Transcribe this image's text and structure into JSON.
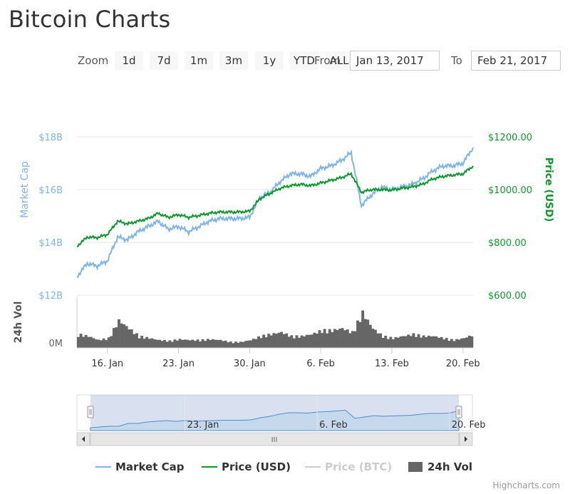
{
  "page": {
    "title": "Bitcoin Charts"
  },
  "range_selector": {
    "zoom_label": "Zoom",
    "buttons": [
      "1d",
      "7d",
      "1m",
      "3m",
      "1y",
      "YTD",
      "ALL"
    ],
    "from_label": "From",
    "to_label": "To",
    "from_value": "Jan 13, 2017",
    "to_value": "Feb 21, 2017"
  },
  "chart_data": {
    "type": "line",
    "axes": {
      "left": {
        "title": "Market Cap",
        "ticks": [
          "$12B",
          "$14B",
          "$16B",
          "$18B"
        ],
        "range": [
          12,
          18
        ],
        "unit": "B USD",
        "color": "#7cb5ec"
      },
      "right": {
        "title": "Price (USD)",
        "ticks": [
          "$600.00",
          "$800.00",
          "$1000.00",
          "$1200.00"
        ],
        "range": [
          600,
          1200
        ],
        "color": "#0a9a2a"
      },
      "volume": {
        "title": "24h Vol",
        "ticks": [
          "0M"
        ]
      },
      "x": {
        "ticks": [
          "16. Jan",
          "23. Jan",
          "30. Jan",
          "6. Feb",
          "13. Feb",
          "20. Feb"
        ],
        "range": [
          "2017-01-13",
          "2017-02-21"
        ]
      }
    },
    "grid": true,
    "legend_position": "bottom",
    "series": [
      {
        "name": "Market Cap",
        "color": "#7cb5ec",
        "x": [
          "2017-01-13",
          "2017-01-14",
          "2017-01-15",
          "2017-01-16",
          "2017-01-17",
          "2017-01-18",
          "2017-01-19",
          "2017-01-20",
          "2017-01-21",
          "2017-01-22",
          "2017-01-23",
          "2017-01-24",
          "2017-01-25",
          "2017-01-26",
          "2017-01-27",
          "2017-01-28",
          "2017-01-29",
          "2017-01-30",
          "2017-01-31",
          "2017-02-01",
          "2017-02-02",
          "2017-02-03",
          "2017-02-04",
          "2017-02-05",
          "2017-02-06",
          "2017-02-07",
          "2017-02-08",
          "2017-02-09",
          "2017-02-10",
          "2017-02-11",
          "2017-02-12",
          "2017-02-13",
          "2017-02-14",
          "2017-02-15",
          "2017-02-16",
          "2017-02-17",
          "2017-02-18",
          "2017-02-19",
          "2017-02-20",
          "2017-02-21"
        ],
        "values": [
          12.7,
          13.2,
          13.1,
          13.3,
          14.2,
          14.1,
          14.4,
          14.6,
          14.8,
          14.5,
          14.6,
          14.4,
          14.6,
          14.8,
          14.9,
          14.9,
          14.9,
          14.95,
          15.7,
          15.9,
          16.3,
          16.6,
          16.6,
          16.5,
          16.8,
          16.9,
          17.1,
          17.4,
          15.4,
          15.8,
          16.1,
          16.0,
          16.1,
          16.2,
          16.4,
          16.7,
          16.9,
          16.9,
          17.0,
          17.6
        ],
        "unit": "B USD"
      },
      {
        "name": "Price (USD)",
        "color": "#0a9a2a",
        "x": [
          "2017-01-13",
          "2017-01-14",
          "2017-01-15",
          "2017-01-16",
          "2017-01-17",
          "2017-01-18",
          "2017-01-19",
          "2017-01-20",
          "2017-01-21",
          "2017-01-22",
          "2017-01-23",
          "2017-01-24",
          "2017-01-25",
          "2017-01-26",
          "2017-01-27",
          "2017-01-28",
          "2017-01-29",
          "2017-01-30",
          "2017-01-31",
          "2017-02-01",
          "2017-02-02",
          "2017-02-03",
          "2017-02-04",
          "2017-02-05",
          "2017-02-06",
          "2017-02-07",
          "2017-02-08",
          "2017-02-09",
          "2017-02-10",
          "2017-02-11",
          "2017-02-12",
          "2017-02-13",
          "2017-02-14",
          "2017-02-15",
          "2017-02-16",
          "2017-02-17",
          "2017-02-18",
          "2017-02-19",
          "2017-02-20",
          "2017-02-21"
        ],
        "values": [
          785,
          820,
          818,
          830,
          880,
          870,
          880,
          890,
          910,
          895,
          905,
          895,
          902,
          910,
          915,
          915,
          915,
          918,
          965,
          985,
          1005,
          1015,
          1020,
          1015,
          1025,
          1035,
          1045,
          1060,
          990,
          1000,
          1000,
          998,
          1005,
          1010,
          1020,
          1040,
          1050,
          1055,
          1060,
          1090
        ]
      },
      {
        "name": "Price (BTC)",
        "color": "#cccccc",
        "visible": false
      },
      {
        "name": "24h Vol",
        "type": "column",
        "color": "#666666",
        "x": [
          "2017-01-13",
          "2017-01-14",
          "2017-01-15",
          "2017-01-16",
          "2017-01-17",
          "2017-01-18",
          "2017-01-19",
          "2017-01-20",
          "2017-01-21",
          "2017-01-22",
          "2017-01-23",
          "2017-01-24",
          "2017-01-25",
          "2017-01-26",
          "2017-01-27",
          "2017-01-28",
          "2017-01-29",
          "2017-01-30",
          "2017-01-31",
          "2017-02-01",
          "2017-02-02",
          "2017-02-03",
          "2017-02-04",
          "2017-02-05",
          "2017-02-06",
          "2017-02-07",
          "2017-02-08",
          "2017-02-09",
          "2017-02-10",
          "2017-02-11",
          "2017-02-12",
          "2017-02-13",
          "2017-02-14",
          "2017-02-15",
          "2017-02-16",
          "2017-02-17",
          "2017-02-18",
          "2017-02-19",
          "2017-02-20",
          "2017-02-21"
        ],
        "values": [
          0.35,
          0.3,
          0.2,
          0.25,
          0.7,
          0.5,
          0.3,
          0.25,
          0.2,
          0.18,
          0.22,
          0.2,
          0.2,
          0.22,
          0.2,
          0.15,
          0.15,
          0.2,
          0.3,
          0.35,
          0.4,
          0.3,
          0.3,
          0.35,
          0.45,
          0.45,
          0.5,
          0.4,
          0.9,
          0.5,
          0.3,
          0.25,
          0.3,
          0.35,
          0.3,
          0.3,
          0.25,
          0.2,
          0.25,
          0.35
        ],
        "range": [
          0,
          1.4
        ]
      }
    ]
  },
  "navigator": {
    "ticks": [
      "23. Jan",
      "6. Feb",
      "20. Feb"
    ],
    "values": [
      0.08,
      0.1,
      0.12,
      0.12,
      0.2,
      0.2,
      0.24,
      0.26,
      0.28,
      0.26,
      0.28,
      0.26,
      0.27,
      0.28,
      0.29,
      0.29,
      0.29,
      0.3,
      0.36,
      0.4,
      0.46,
      0.5,
      0.5,
      0.49,
      0.52,
      0.53,
      0.55,
      0.57,
      0.34,
      0.38,
      0.42,
      0.4,
      0.41,
      0.42,
      0.43,
      0.46,
      0.48,
      0.48,
      0.49,
      0.56
    ],
    "range": [
      0,
      1
    ],
    "scroll_grip": "III"
  },
  "credits": "Highcharts.com"
}
